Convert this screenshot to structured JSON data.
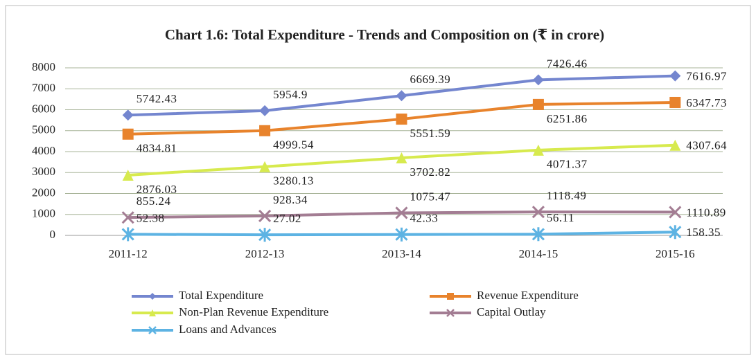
{
  "chart_data": {
    "type": "line",
    "title": "Chart 1.6: Total Expenditure - Trends and Composition on (₹ in crore)",
    "categories": [
      "2011-12",
      "2012-13",
      "2013-14",
      "2014-15",
      "2015-16"
    ],
    "series": [
      {
        "name": "Total Expenditure",
        "color": "#7486cf",
        "marker": "diamond",
        "label_position": "above",
        "values": [
          5742.43,
          5954.9,
          6669.39,
          7426.46,
          7616.97
        ]
      },
      {
        "name": "Revenue Expenditure",
        "color": "#e8832c",
        "marker": "square",
        "label_position": "below",
        "values": [
          4834.81,
          4999.54,
          5551.59,
          6251.86,
          6347.73
        ]
      },
      {
        "name": "Non-Plan Revenue Expenditure",
        "color": "#d7ea4e",
        "marker": "triangle",
        "label_position": "below",
        "values": [
          2876.03,
          3280.13,
          3702.82,
          4071.37,
          4307.64
        ]
      },
      {
        "name": "Capital Outlay",
        "color": "#a37d93",
        "marker": "x",
        "label_position": "above",
        "values": [
          855.24,
          928.34,
          1075.47,
          1118.49,
          1110.89
        ]
      },
      {
        "name": "Loans and Advances",
        "color": "#5db3e3",
        "marker": "star",
        "label_position": "above",
        "values": [
          52.38,
          27.02,
          42.33,
          56.11,
          158.35
        ]
      }
    ],
    "ylim": [
      0,
      8000
    ],
    "yticks": [
      0,
      1000,
      2000,
      3000,
      4000,
      5000,
      6000,
      7000,
      8000
    ],
    "grid": true
  }
}
